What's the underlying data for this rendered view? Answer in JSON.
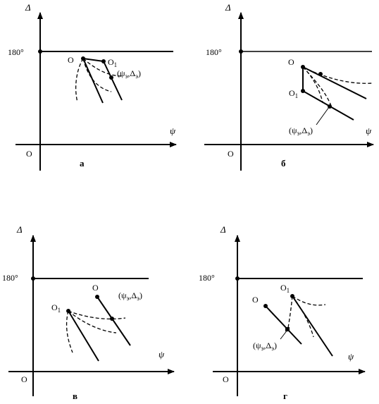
{
  "panels": [
    {
      "id": "a",
      "y_axis_label": "Δ",
      "x_axis_label": "ψ",
      "origin_label": "O",
      "y_tick_label": "180°",
      "point_O_label": "O",
      "point_O1_label": "O",
      "point_O1_subscript": "1",
      "point_e_label": "(ψ",
      "point_e_sub1": "э",
      "point_e_mid": ",Δ",
      "point_e_sub2": "э",
      "point_e_close": ")",
      "caption": "а"
    },
    {
      "id": "b",
      "y_axis_label": "Δ",
      "x_axis_label": "ψ",
      "origin_label": "O",
      "y_tick_label": "180°",
      "point_O_label": "O",
      "point_O1_label": "O",
      "point_O1_subscript": "1",
      "point_e_label": "(ψ",
      "point_e_sub1": "э",
      "point_e_mid": ",Δ",
      "point_e_sub2": "э",
      "point_e_close": ")",
      "caption": "б"
    },
    {
      "id": "v",
      "y_axis_label": "Δ",
      "x_axis_label": "ψ",
      "origin_label": "O",
      "y_tick_label": "180°",
      "point_O_label": "O",
      "point_O1_label": "O",
      "point_O1_subscript": "1",
      "point_e_label": "(ψ",
      "point_e_sub1": "э",
      "point_e_mid": ",Δ",
      "point_e_sub2": "э",
      "point_e_close": ")",
      "caption": "в"
    },
    {
      "id": "g",
      "y_axis_label": "Δ",
      "x_axis_label": "ψ",
      "origin_label": "O",
      "y_tick_label": "180°",
      "point_O_label": "O",
      "point_O1_label": "O",
      "point_O1_subscript": "1",
      "point_e_label": "(ψ",
      "point_e_sub1": "э",
      "point_e_mid": ",Δ",
      "point_e_sub2": "э",
      "point_e_close": ")",
      "caption": "г"
    }
  ]
}
